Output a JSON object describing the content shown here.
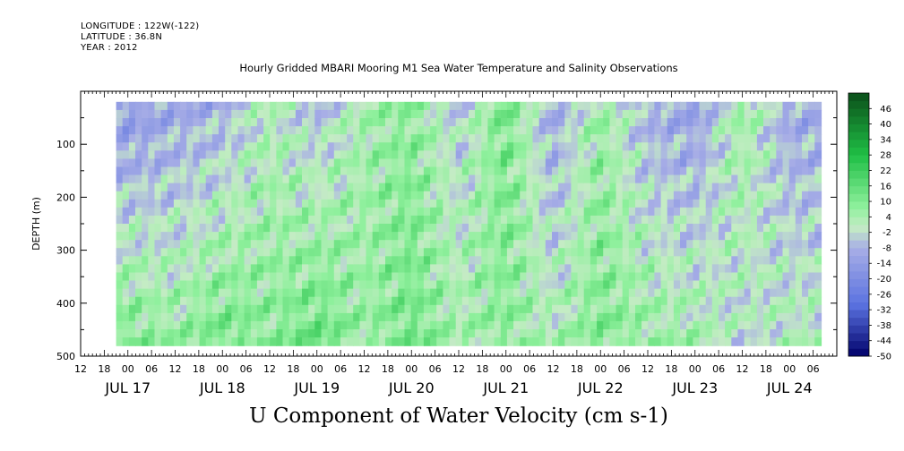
{
  "header": {
    "longitude": "LONGITUDE : 122W(-122)",
    "latitude": "LATITUDE : 36.8N",
    "year": "YEAR : 2012"
  },
  "chart_data": {
    "type": "heatmap",
    "title": "Hourly Gridded MBARI Mooring M1 Sea Water Temperature and Salinity Observations",
    "xlabel": "U Component of Water Velocity (cm s-1)",
    "ylabel": "DEPTH (m)",
    "ylim": [
      500,
      0
    ],
    "y_ticks": [
      100,
      200,
      300,
      400,
      500
    ],
    "x_range": [
      "2012-07-16T12:00",
      "2012-07-24T12:00"
    ],
    "data_start": "2012-07-16T21:00",
    "data_end": "2012-07-24T08:00",
    "depth_range": [
      20,
      480
    ],
    "hour_ticks": [
      "12",
      "18",
      "00",
      "06",
      "12",
      "18",
      "00",
      "06",
      "12",
      "18",
      "00",
      "06",
      "12",
      "18",
      "00",
      "06",
      "12",
      "18",
      "00",
      "06",
      "12",
      "18",
      "00",
      "06",
      "12",
      "18",
      "00",
      "06",
      "12",
      "18",
      "00",
      "06"
    ],
    "day_labels": [
      "JUL 17",
      "JUL 18",
      "JUL 19",
      "JUL 20",
      "JUL 21",
      "JUL 22",
      "JUL 23",
      "JUL 24"
    ],
    "colorbar": {
      "labels": [
        "46",
        "40",
        "34",
        "28",
        "22",
        "16",
        "10",
        "4",
        "-2",
        "-8",
        "-14",
        "-20",
        "-26",
        "-32",
        "-38",
        "-44",
        "-50"
      ],
      "min": -50,
      "max": 52,
      "step": 3
    },
    "grid": false,
    "legend_position": "right",
    "bands": [
      {
        "time": "2012-07-17T00:00",
        "shallow": -14,
        "deep": 10
      },
      {
        "time": "2012-07-17T12:00",
        "shallow": -10,
        "deep": 6
      },
      {
        "time": "2012-07-18T00:00",
        "shallow": -8,
        "deep": 12
      },
      {
        "time": "2012-07-18T12:00",
        "shallow": 2,
        "deep": 8
      },
      {
        "time": "2012-07-19T00:00",
        "shallow": -6,
        "deep": 14
      },
      {
        "time": "2012-07-19T12:00",
        "shallow": 4,
        "deep": 6
      },
      {
        "time": "2012-07-20T00:00",
        "shallow": 8,
        "deep": 12
      },
      {
        "time": "2012-07-20T12:00",
        "shallow": -4,
        "deep": 4
      },
      {
        "time": "2012-07-21T00:00",
        "shallow": 12,
        "deep": 8
      },
      {
        "time": "2012-07-21T12:00",
        "shallow": -10,
        "deep": 2
      },
      {
        "time": "2012-07-22T00:00",
        "shallow": 6,
        "deep": 10
      },
      {
        "time": "2012-07-22T12:00",
        "shallow": -8,
        "deep": 6
      },
      {
        "time": "2012-07-23T00:00",
        "shallow": -12,
        "deep": 4
      },
      {
        "time": "2012-07-23T12:00",
        "shallow": 6,
        "deep": -2
      },
      {
        "time": "2012-07-24T00:00",
        "shallow": -10,
        "deep": 2
      }
    ],
    "colors": {
      "max": "#0b4f1a",
      "high": "#1fbf45",
      "mid_high": "#8ef09c",
      "zero": "#c4ecc4",
      "mid_low": "#a8aee6",
      "low": "#5a72e0",
      "min": "#00006a"
    }
  }
}
